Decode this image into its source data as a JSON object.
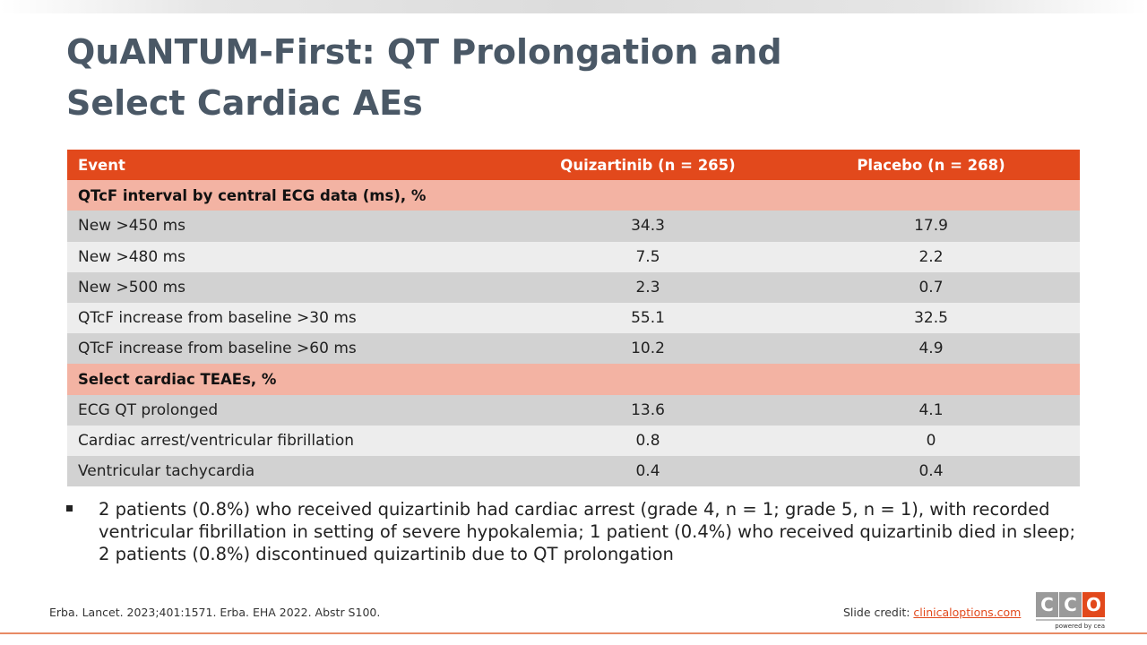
{
  "title": {
    "line1": "QuANTUM-First: QT Prolongation and",
    "line2": "Select Cardiac AEs"
  },
  "table": {
    "headers": [
      "Event",
      "Quizartinib (n = 265)",
      "Placebo (n = 268)"
    ],
    "sections": [
      {
        "label": "QTcF interval by central ECG data (ms), %",
        "rows": [
          [
            "New >450 ms",
            "34.3",
            "17.9"
          ],
          [
            "New >480 ms",
            "7.5",
            "2.2"
          ],
          [
            "New >500 ms",
            "2.3",
            "0.7"
          ],
          [
            "QTcF increase from baseline >30 ms",
            "55.1",
            "32.5"
          ],
          [
            "QTcF increase from baseline >60 ms",
            "10.2",
            "4.9"
          ]
        ]
      },
      {
        "label": "Select cardiac TEAEs, %",
        "rows": [
          [
            "ECG QT prolonged",
            "13.6",
            "4.1"
          ],
          [
            "Cardiac arrest/ventricular fibrillation",
            "0.8",
            "0"
          ],
          [
            "Ventricular tachycardia",
            "0.4",
            "0.4"
          ]
        ]
      }
    ]
  },
  "bullets": [
    "2 patients (0.8%) who received quizartinib had cardiac arrest (grade 4, n = 1; grade 5, n = 1), with recorded ventricular fibrillation in setting of severe hypokalemia; 1 patient (0.4%) who received quizartinib died in sleep; 2 patients (0.8%) discontinued quizartinib due to QT prolongation"
  ],
  "footer": {
    "citation": "Erba. Lancet. 2023;401:1571. Erba. EHA 2022. Abstr S100.",
    "credit_label": "Slide credit: ",
    "credit_link": "clinicaloptions.com"
  },
  "logo": {
    "letters": [
      "C",
      "C",
      "O"
    ],
    "tagline": "powered by cea"
  },
  "colors": {
    "accent": "#e2491c",
    "section_fill": "#f3b3a3",
    "row_dark": "#d2d2d2",
    "row_light": "#ededed",
    "title": "#4a5866"
  }
}
